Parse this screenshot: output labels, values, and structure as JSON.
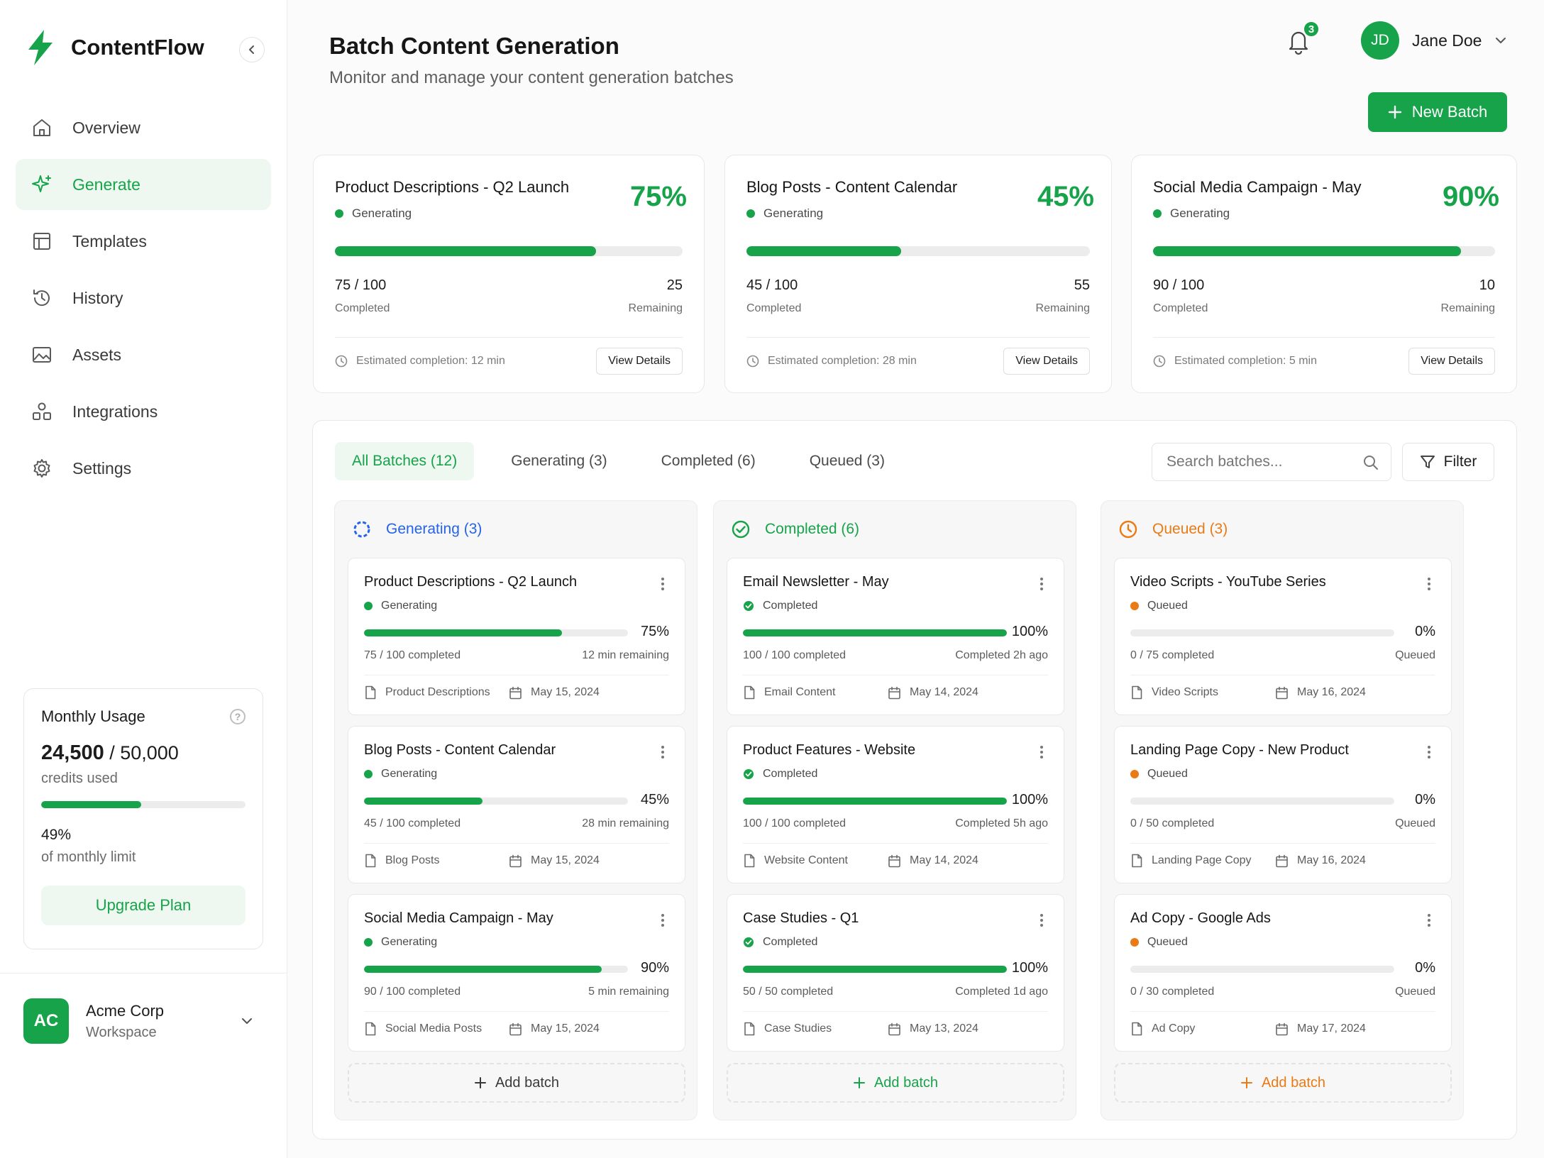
{
  "brand": {
    "name": "ContentFlow"
  },
  "nav": [
    {
      "label": "Overview",
      "icon": "home-icon",
      "active": false
    },
    {
      "label": "Generate",
      "icon": "sparkle-icon",
      "active": true
    },
    {
      "label": "Templates",
      "icon": "template-icon",
      "active": false
    },
    {
      "label": "History",
      "icon": "history-icon",
      "active": false
    },
    {
      "label": "Assets",
      "icon": "image-icon",
      "active": false
    },
    {
      "label": "Integrations",
      "icon": "integrations-icon",
      "active": false
    },
    {
      "label": "Settings",
      "icon": "gear-icon",
      "active": false
    }
  ],
  "usage": {
    "title": "Monthly Usage",
    "used": "24,500",
    "total": "/ 50,000",
    "used_label": "credits used",
    "fraction": 0.49,
    "percent": "49%",
    "limit_label": "of monthly limit",
    "upgrade_label": "Upgrade Plan"
  },
  "workspace": {
    "initials": "AC",
    "name": "Acme Corp",
    "sub": "Workspace"
  },
  "header": {
    "title": "Batch Content Generation",
    "subtitle": "Monitor and manage your content generation batches",
    "notifications": "3",
    "user_initials": "JD",
    "user_name": "Jane Doe",
    "new_batch_label": "New Batch"
  },
  "stats": [
    {
      "title": "Product Descriptions - Q2 Launch",
      "status": "Generating",
      "percent": "75%",
      "fraction": 0.75,
      "completed": "75 / 100",
      "completed_label": "Completed",
      "remaining": "25",
      "remaining_label": "Remaining",
      "estimate": "Estimated completion: 12 min",
      "action": "View Details"
    },
    {
      "title": "Blog Posts - Content Calendar",
      "status": "Generating",
      "percent": "45%",
      "fraction": 0.45,
      "completed": "45 / 100",
      "completed_label": "Completed",
      "remaining": "55",
      "remaining_label": "Remaining",
      "estimate": "Estimated completion: 28 min",
      "action": "View Details"
    },
    {
      "title": "Social Media Campaign - May",
      "status": "Generating",
      "percent": "90%",
      "fraction": 0.9,
      "completed": "90 / 100",
      "completed_label": "Completed",
      "remaining": "10",
      "remaining_label": "Remaining",
      "estimate": "Estimated completion: 5 min",
      "action": "View Details"
    }
  ],
  "tabs": [
    {
      "label": "All Batches (12)",
      "active": true
    },
    {
      "label": "Generating (3)",
      "active": false
    },
    {
      "label": "Completed (6)",
      "active": false
    },
    {
      "label": "Queued (3)",
      "active": false
    }
  ],
  "search": {
    "placeholder": "Search batches..."
  },
  "filter_label": "Filter",
  "colors": {
    "green": "#16a34a",
    "blue": "#2563eb",
    "orange": "#ea7a16"
  },
  "columns": [
    {
      "title": "Generating (3)",
      "color": "#2563eb",
      "icon": "spinner-icon",
      "add_label": "Add batch",
      "add_color": "#3a3a3a",
      "cards": [
        {
          "title": "Product Descriptions - Q2 Launch",
          "status": "Generating",
          "dot": "#16a34a",
          "fraction": 0.75,
          "percent": "75%",
          "progress": "75 / 100 completed",
          "right": "12 min remaining",
          "type": "Product Descriptions",
          "date": "May 15, 2024"
        },
        {
          "title": "Blog Posts - Content Calendar",
          "status": "Generating",
          "dot": "#16a34a",
          "fraction": 0.45,
          "percent": "45%",
          "progress": "45 / 100 completed",
          "right": "28 min remaining",
          "type": "Blog Posts",
          "date": "May 15, 2024"
        },
        {
          "title": "Social Media Campaign - May",
          "status": "Generating",
          "dot": "#16a34a",
          "fraction": 0.9,
          "percent": "90%",
          "progress": "90 / 100 completed",
          "right": "5 min remaining",
          "type": "Social Media Posts",
          "date": "May 15, 2024"
        }
      ]
    },
    {
      "title": "Completed (6)",
      "color": "#16a34a",
      "icon": "check-circle-icon",
      "add_label": "Add batch",
      "add_color": "#16a34a",
      "cards": [
        {
          "title": "Email Newsletter - May",
          "status": "Completed",
          "dot": "#16a34a",
          "fraction": 1,
          "percent": "100%",
          "progress": "100 / 100 completed",
          "right": "Completed 2h ago",
          "type": "Email Content",
          "date": "May 14, 2024"
        },
        {
          "title": "Product Features - Website",
          "status": "Completed",
          "dot": "#16a34a",
          "fraction": 1,
          "percent": "100%",
          "progress": "100 / 100 completed",
          "right": "Completed 5h ago",
          "type": "Website Content",
          "date": "May 14, 2024"
        },
        {
          "title": "Case Studies - Q1",
          "status": "Completed",
          "dot": "#16a34a",
          "fraction": 1,
          "percent": "100%",
          "progress": "50 / 50 completed",
          "right": "Completed 1d ago",
          "type": "Case Studies",
          "date": "May 13, 2024"
        }
      ]
    },
    {
      "title": "Queued (3)",
      "color": "#ea7a16",
      "icon": "clock-icon",
      "add_label": "Add batch",
      "add_color": "#ea7a16",
      "cards": [
        {
          "title": "Video Scripts - YouTube Series",
          "status": "Queued",
          "dot": "#ea7a16",
          "fraction": 0,
          "percent": "0%",
          "progress": "0 / 75 completed",
          "right": "Queued",
          "type": "Video Scripts",
          "date": "May 16, 2024"
        },
        {
          "title": "Landing Page Copy - New Product",
          "status": "Queued",
          "dot": "#ea7a16",
          "fraction": 0,
          "percent": "0%",
          "progress": "0 / 50 completed",
          "right": "Queued",
          "type": "Landing Page Copy",
          "date": "May 16, 2024"
        },
        {
          "title": "Ad Copy - Google Ads",
          "status": "Queued",
          "dot": "#ea7a16",
          "fraction": 0,
          "percent": "0%",
          "progress": "0 / 30 completed",
          "right": "Queued",
          "type": "Ad Copy",
          "date": "May 17, 2024"
        }
      ]
    }
  ]
}
